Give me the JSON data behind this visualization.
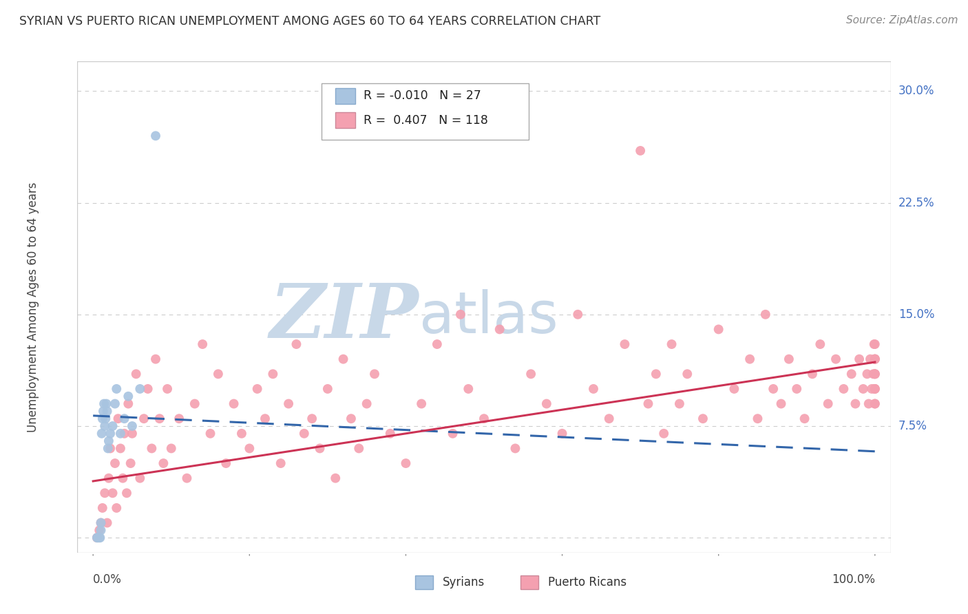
{
  "title": "SYRIAN VS PUERTO RICAN UNEMPLOYMENT AMONG AGES 60 TO 64 YEARS CORRELATION CHART",
  "source": "Source: ZipAtlas.com",
  "ylabel": "Unemployment Among Ages 60 to 64 years",
  "syrian_color": "#a8c4e0",
  "puerto_rican_color": "#f4a0b0",
  "syrian_line_color": "#3366aa",
  "puerto_rican_line_color": "#cc3355",
  "legend_syrian_R": "-0.010",
  "legend_syrian_N": "27",
  "legend_pr_R": "0.407",
  "legend_pr_N": "118",
  "legend_label_syrian": "Syrians",
  "legend_label_pr": "Puerto Ricans",
  "watermark_zip": "ZIP",
  "watermark_atlas": "atlas",
  "watermark_color": "#c8d8e8",
  "background_color": "#ffffff",
  "grid_color": "#cccccc",
  "ylim": [
    0.0,
    0.3
  ],
  "xlim": [
    0.0,
    1.0
  ],
  "y_ticks": [
    0.0,
    0.075,
    0.15,
    0.225,
    0.3
  ],
  "y_tick_labels": [
    "",
    "7.5%",
    "15.0%",
    "22.5%",
    "30.0%"
  ],
  "syrian_x": [
    0.005,
    0.006,
    0.007,
    0.008,
    0.009,
    0.01,
    0.01,
    0.011,
    0.012,
    0.013,
    0.014,
    0.015,
    0.016,
    0.017,
    0.018,
    0.019,
    0.02,
    0.022,
    0.025,
    0.028,
    0.03,
    0.035,
    0.04,
    0.045,
    0.05,
    0.06,
    0.08
  ],
  "syrian_y": [
    0.0,
    0.0,
    0.0,
    0.0,
    0.0,
    0.005,
    0.01,
    0.07,
    0.08,
    0.085,
    0.09,
    0.075,
    0.08,
    0.09,
    0.085,
    0.06,
    0.065,
    0.07,
    0.075,
    0.09,
    0.1,
    0.07,
    0.08,
    0.095,
    0.075,
    0.1,
    0.27
  ],
  "syrian_outlier_x": [
    0.012
  ],
  "syrian_outlier_y": [
    0.27
  ],
  "pr_x": [
    0.005,
    0.008,
    0.01,
    0.012,
    0.015,
    0.018,
    0.02,
    0.022,
    0.025,
    0.028,
    0.03,
    0.032,
    0.035,
    0.038,
    0.04,
    0.043,
    0.045,
    0.048,
    0.05,
    0.055,
    0.06,
    0.065,
    0.07,
    0.075,
    0.08,
    0.085,
    0.09,
    0.095,
    0.1,
    0.11,
    0.12,
    0.13,
    0.14,
    0.15,
    0.16,
    0.17,
    0.18,
    0.19,
    0.2,
    0.21,
    0.22,
    0.23,
    0.24,
    0.25,
    0.26,
    0.27,
    0.28,
    0.29,
    0.3,
    0.31,
    0.32,
    0.33,
    0.34,
    0.35,
    0.36,
    0.38,
    0.4,
    0.42,
    0.44,
    0.46,
    0.47,
    0.48,
    0.5,
    0.52,
    0.54,
    0.56,
    0.58,
    0.6,
    0.62,
    0.64,
    0.66,
    0.68,
    0.7,
    0.71,
    0.72,
    0.73,
    0.74,
    0.75,
    0.76,
    0.78,
    0.8,
    0.82,
    0.84,
    0.85,
    0.86,
    0.87,
    0.88,
    0.89,
    0.9,
    0.91,
    0.92,
    0.93,
    0.94,
    0.95,
    0.96,
    0.97,
    0.975,
    0.98,
    0.985,
    0.99,
    0.992,
    0.994,
    0.996,
    0.998,
    0.999,
    1.0,
    1.0,
    1.0,
    1.0,
    1.0,
    1.0,
    1.0,
    1.0,
    1.0,
    1.0,
    1.0,
    1.0,
    1.0
  ],
  "pr_y": [
    0.0,
    0.005,
    0.01,
    0.02,
    0.03,
    0.01,
    0.04,
    0.06,
    0.03,
    0.05,
    0.02,
    0.08,
    0.06,
    0.04,
    0.07,
    0.03,
    0.09,
    0.05,
    0.07,
    0.11,
    0.04,
    0.08,
    0.1,
    0.06,
    0.12,
    0.08,
    0.05,
    0.1,
    0.06,
    0.08,
    0.04,
    0.09,
    0.13,
    0.07,
    0.11,
    0.05,
    0.09,
    0.07,
    0.06,
    0.1,
    0.08,
    0.11,
    0.05,
    0.09,
    0.13,
    0.07,
    0.08,
    0.06,
    0.1,
    0.04,
    0.12,
    0.08,
    0.06,
    0.09,
    0.11,
    0.07,
    0.05,
    0.09,
    0.13,
    0.07,
    0.15,
    0.1,
    0.08,
    0.14,
    0.06,
    0.11,
    0.09,
    0.07,
    0.15,
    0.1,
    0.08,
    0.13,
    0.26,
    0.09,
    0.11,
    0.07,
    0.13,
    0.09,
    0.11,
    0.08,
    0.14,
    0.1,
    0.12,
    0.08,
    0.15,
    0.1,
    0.09,
    0.12,
    0.1,
    0.08,
    0.11,
    0.13,
    0.09,
    0.12,
    0.1,
    0.11,
    0.09,
    0.12,
    0.1,
    0.11,
    0.09,
    0.12,
    0.1,
    0.11,
    0.13,
    0.12,
    0.1,
    0.11,
    0.09,
    0.12,
    0.1,
    0.11,
    0.12,
    0.13,
    0.11,
    0.1,
    0.09,
    0.12
  ],
  "syrian_trend_x0": 0.0,
  "syrian_trend_y0": 0.082,
  "syrian_trend_x1": 1.0,
  "syrian_trend_y1": 0.058,
  "pr_trend_x0": 0.0,
  "pr_trend_y0": 0.038,
  "pr_trend_x1": 1.0,
  "pr_trend_y1": 0.118
}
